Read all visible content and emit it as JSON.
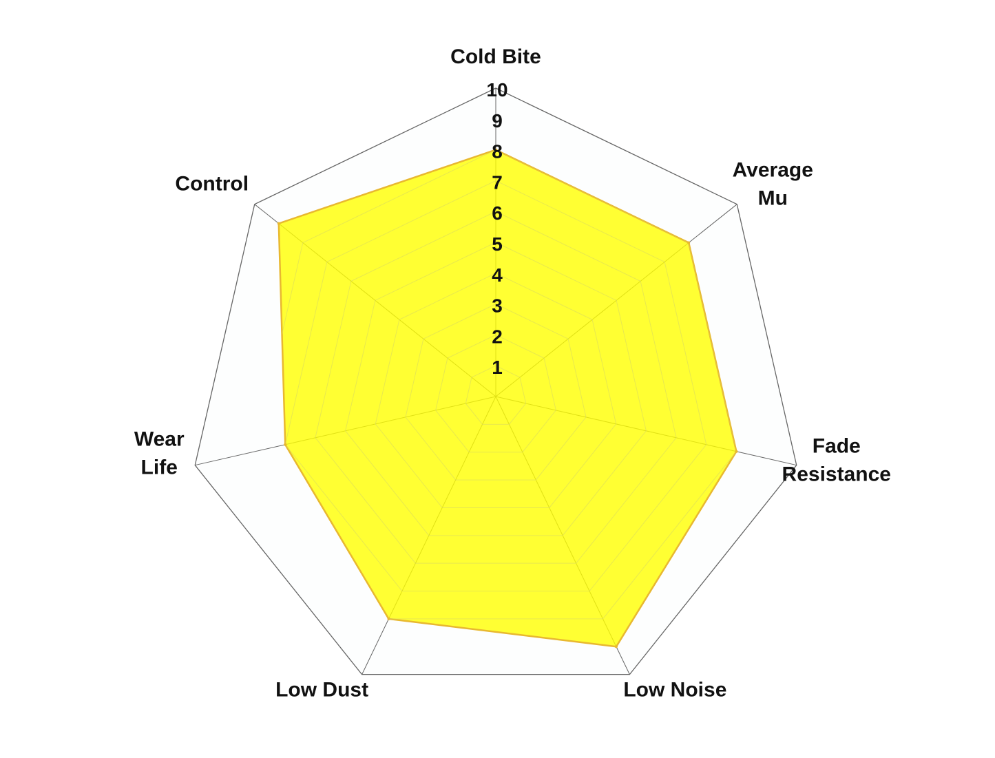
{
  "chart_data": {
    "type": "radar",
    "categories": [
      "Cold Bite",
      "Average Mu",
      "Fade Resistance",
      "Low Noise",
      "Low Dust",
      "Wear Life",
      "Control"
    ],
    "category_lines": [
      [
        "Cold Bite"
      ],
      [
        "Average",
        "Mu"
      ],
      [
        "Fade",
        "Resistance"
      ],
      [
        "Low Noise"
      ],
      [
        "Low Dust"
      ],
      [
        "Wear",
        "Life"
      ],
      [
        "Control"
      ]
    ],
    "values": [
      8,
      8,
      8,
      9,
      8,
      7,
      9
    ],
    "rlim": [
      0,
      10
    ],
    "ticks": [
      1,
      2,
      3,
      4,
      5,
      6,
      7,
      8,
      9,
      10
    ],
    "grid": true,
    "colors": {
      "fill": "#ffff00",
      "fill_opacity": 0.8,
      "line": "#e8b830",
      "grid": "#666666",
      "inner_grid": "#d8d860"
    }
  }
}
